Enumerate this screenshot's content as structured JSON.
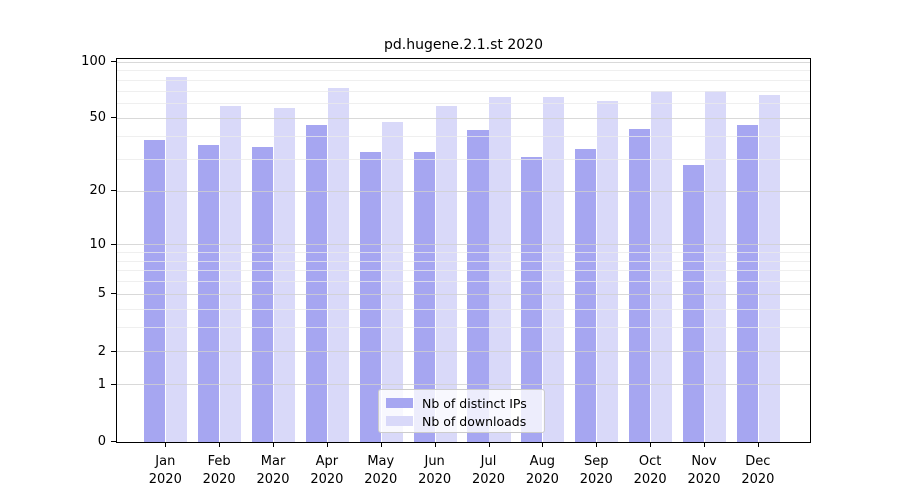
{
  "chart_data": {
    "type": "bar",
    "title": "pd.hugene.2.1.st 2020",
    "year_label": "2020",
    "categories": [
      "Jan",
      "Feb",
      "Mar",
      "Apr",
      "May",
      "Jun",
      "Jul",
      "Aug",
      "Sep",
      "Oct",
      "Nov",
      "Dec"
    ],
    "series": [
      {
        "name": "Nb of distinct IPs",
        "color": "#a6a6f1",
        "values": [
          38,
          36,
          35,
          46,
          33,
          33,
          43,
          31,
          34,
          44,
          28,
          46
        ]
      },
      {
        "name": "Nb of downloads",
        "color": "#d9d9f9",
        "values": [
          83,
          58,
          57,
          73,
          48,
          58,
          65,
          65,
          62,
          70,
          70,
          67
        ]
      }
    ],
    "y_axis": {
      "scale": "log1p",
      "ticks": [
        0,
        1,
        2,
        5,
        10,
        20,
        50,
        100
      ],
      "minor_ticks": [
        3,
        4,
        6,
        7,
        8,
        9,
        30,
        40,
        60,
        70,
        80,
        90
      ],
      "range": [
        0,
        100
      ]
    },
    "x_axis": {
      "label_format": "month-over-year"
    },
    "legend": {
      "position": "bottom-center"
    },
    "grid": true
  },
  "colors": {
    "bar_dark": "#a6a6f1",
    "bar_light": "#d9d9f9",
    "grid_major": "#d0d0d0",
    "grid_minor": "#e9e9e9",
    "axis": "#000000",
    "background": "#ffffff"
  }
}
